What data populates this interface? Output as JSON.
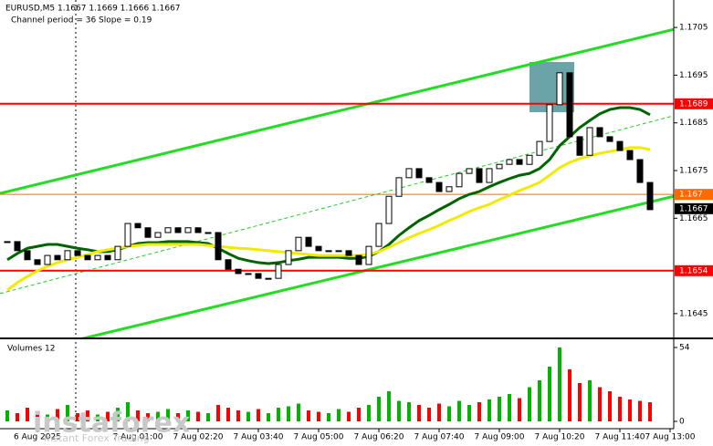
{
  "chart_data": {
    "type": "candlestick",
    "title": "EURUSD,M5  1.1667 1.1669 1.1666 1.1667",
    "subtitle": "Channel period = 36 Slope = 0.19",
    "candle_color": "#000000",
    "ylim": [
      1.164,
      1.171
    ],
    "yticks": [
      1.1645,
      1.1665,
      1.1675,
      1.1685,
      1.1695,
      1.1705
    ],
    "categories": [
      null,
      null,
      null,
      "6 Aug 2025",
      null,
      null,
      null,
      null,
      null,
      null,
      null,
      null,
      null,
      "7 Aug 01:00",
      null,
      null,
      null,
      null,
      null,
      "7 Aug 02:20",
      null,
      null,
      null,
      null,
      null,
      "7 Aug 03:40",
      null,
      null,
      null,
      null,
      null,
      "7 Aug 05:00",
      null,
      null,
      null,
      null,
      null,
      "7 Aug 06:20",
      null,
      null,
      null,
      null,
      null,
      "7 Aug 07:40",
      null,
      null,
      null,
      null,
      null,
      "7 Aug 09:00",
      null,
      null,
      null,
      null,
      null,
      "7 Aug 10:20",
      null,
      null,
      null,
      null,
      null,
      "7 Aug 11:40",
      null,
      null,
      null,
      null,
      "7 Aug 13:00"
    ],
    "close": [
      1.16601,
      1.16582,
      1.16563,
      1.16553,
      1.16572,
      1.16563,
      1.16582,
      1.16572,
      1.16563,
      1.16572,
      1.16563,
      1.16591,
      1.16639,
      1.1663,
      1.1661,
      1.1662,
      1.1663,
      1.1662,
      1.1663,
      1.1662,
      1.1662,
      1.16563,
      1.16543,
      1.16534,
      1.16534,
      1.16524,
      1.16524,
      1.16553,
      1.16582,
      1.1661,
      1.16591,
      1.16582,
      1.16582,
      1.16582,
      1.16572,
      1.16553,
      1.16591,
      1.16639,
      1.16696,
      1.16735,
      1.16754,
      1.16735,
      1.16725,
      1.16706,
      1.16716,
      1.16744,
      1.16754,
      1.16725,
      1.16754,
      1.16763,
      1.16773,
      1.16763,
      1.16782,
      1.16811,
      1.16888,
      1.16955,
      1.16821,
      1.16782,
      1.1684,
      1.16821,
      1.16811,
      1.16792,
      1.16773,
      1.16725,
      1.16668,
      null,
      null
    ],
    "moving_averages": [
      {
        "color": "#006400",
        "width": 3,
        "values": [
          1.16563,
          1.16576,
          1.16587,
          1.16591,
          1.16595,
          1.16595,
          1.16591,
          1.16587,
          1.16584,
          1.1658,
          1.1658,
          1.16584,
          1.16591,
          1.16597,
          1.16599,
          1.16599,
          1.16601,
          1.16601,
          1.16601,
          1.16599,
          1.16597,
          1.16587,
          1.16576,
          1.16566,
          1.16561,
          1.16557,
          1.16555,
          1.16557,
          1.16561,
          1.16564,
          1.16568,
          1.16568,
          1.16568,
          1.16568,
          1.16566,
          1.16566,
          1.1657,
          1.1658,
          1.16595,
          1.16614,
          1.1663,
          1.16645,
          1.16656,
          1.16668,
          1.16679,
          1.16691,
          1.167,
          1.16706,
          1.16716,
          1.16725,
          1.16733,
          1.1674,
          1.16744,
          1.16754,
          1.16773,
          1.16802,
          1.16821,
          1.1684,
          1.16855,
          1.16869,
          1.16878,
          1.16882,
          1.16882,
          1.16878,
          1.16867,
          null,
          null
        ]
      },
      {
        "color": "#f2ea00",
        "width": 3,
        "values": [
          1.16499,
          1.16515,
          1.16528,
          1.1654,
          1.16549,
          1.16557,
          1.16563,
          1.16568,
          1.16574,
          1.1658,
          1.16584,
          1.16587,
          1.16591,
          1.16593,
          1.16595,
          1.16595,
          1.16595,
          1.16595,
          1.16595,
          1.16595,
          1.16593,
          1.16591,
          1.16589,
          1.16587,
          1.16586,
          1.16584,
          1.16582,
          1.1658,
          1.16578,
          1.16576,
          1.16574,
          1.16572,
          1.16572,
          1.16572,
          1.16572,
          1.16572,
          1.16574,
          1.1658,
          1.16589,
          1.16599,
          1.16609,
          1.16618,
          1.16626,
          1.16635,
          1.16645,
          1.16654,
          1.16664,
          1.16672,
          1.16679,
          1.16689,
          1.16698,
          1.16708,
          1.16716,
          1.16725,
          1.1674,
          1.16756,
          1.16767,
          1.16775,
          1.16781,
          1.16786,
          1.1679,
          1.16794,
          1.16798,
          1.16798,
          1.16794,
          null,
          null
        ]
      }
    ],
    "channel": [
      {
        "color": "#22dd22",
        "width": 3,
        "dashed": false,
        "values": [
          1.16702,
          1.17046
        ]
      },
      {
        "color": "#22dd22",
        "width": 3,
        "dashed": false,
        "values": [
          1.16356,
          1.16696
        ]
      },
      {
        "color": "#22cc22",
        "width": 1,
        "dashed": true,
        "values": [
          1.16492,
          1.16865
        ]
      }
    ],
    "levels": [
      {
        "value": 1.1689,
        "color": "#ff0000",
        "width": 2
      },
      {
        "value": 1.1654,
        "color": "#ff0000",
        "width": 2
      },
      {
        "value": 1.167,
        "color": "#ff6a00",
        "width": 1
      }
    ],
    "last_price": 1.1667,
    "volume": {
      "title": "Volumes 12",
      "ylim": [
        0,
        54
      ],
      "yticks": [
        54,
        0
      ],
      "up_color": "#00b400",
      "down_color": "#ff0000",
      "values": [
        8,
        6,
        10,
        7,
        5,
        9,
        12,
        6,
        8,
        5,
        7,
        10,
        14,
        8,
        6,
        7,
        9,
        6,
        8,
        7,
        6,
        12,
        10,
        8,
        7,
        9,
        6,
        10,
        11,
        13,
        8,
        7,
        6,
        9,
        7,
        10,
        12,
        18,
        22,
        15,
        14,
        12,
        10,
        13,
        11,
        15,
        12,
        14,
        16,
        18,
        20,
        17,
        25,
        30,
        40,
        54,
        38,
        28,
        30,
        25,
        22,
        18,
        16,
        15,
        14,
        null,
        null
      ]
    }
  },
  "watermark": {
    "brand": "instaforex",
    "tagline": "Instant Forex Trading"
  }
}
